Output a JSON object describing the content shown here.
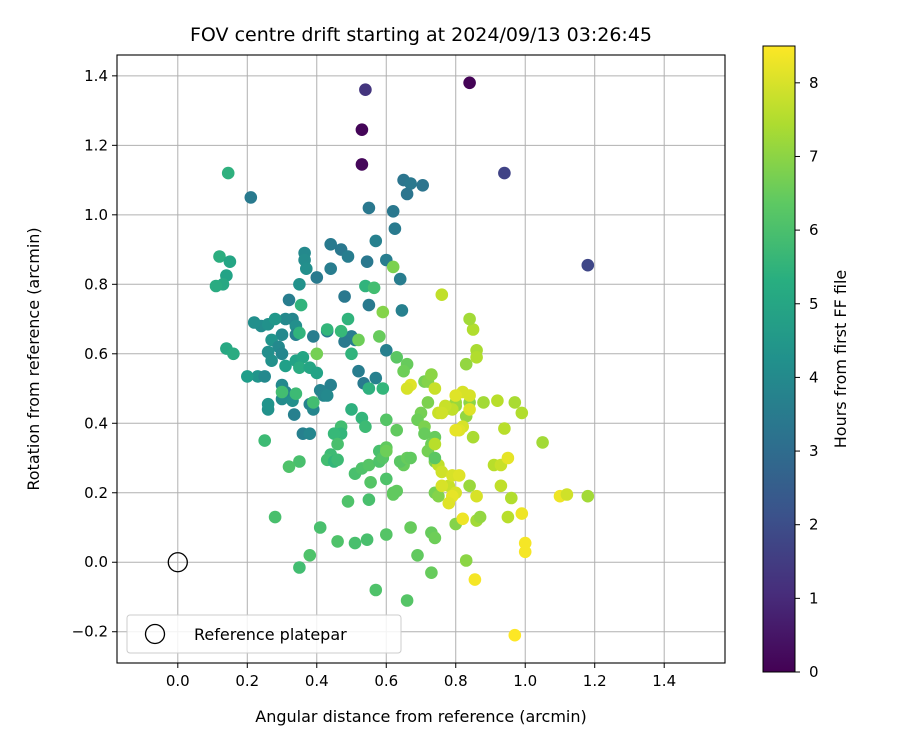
{
  "chart_data": {
    "type": "scatter",
    "title": "FOV centre drift starting at 2024/09/13 03:26:45",
    "xlabel": "Angular distance from reference (arcmin)",
    "ylabel": "Rotation from reference (arcmin)",
    "xlim": [
      -0.175,
      1.575
    ],
    "ylim": [
      -0.29,
      1.46
    ],
    "xticks": [
      "0.0",
      "0.2",
      "0.4",
      "0.6",
      "0.8",
      "1.0",
      "1.2",
      "1.4"
    ],
    "yticks": [
      "−0.2",
      "0.0",
      "0.2",
      "0.4",
      "0.6",
      "0.8",
      "1.0",
      "1.2",
      "1.4"
    ],
    "grid": true,
    "legend": {
      "placement": "lower-left",
      "entries": [
        "Reference platepar"
      ]
    },
    "reference_point": {
      "x": 0.0,
      "y": 0.0,
      "label": "Reference platepar"
    },
    "colorbar": {
      "label": "Hours from first FF file",
      "range": [
        0,
        8.5
      ],
      "ticks": [
        "0",
        "1",
        "2",
        "3",
        "4",
        "5",
        "6",
        "7",
        "8"
      ],
      "colormap": "viridis"
    },
    "points": [
      [
        0.84,
        1.38,
        0.05
      ],
      [
        0.53,
        1.245,
        0.1
      ],
      [
        0.53,
        1.145,
        0.15
      ],
      [
        0.54,
        1.36,
        1.3
      ],
      [
        0.94,
        1.12,
        1.7
      ],
      [
        1.18,
        0.855,
        1.8
      ],
      [
        0.21,
        1.05,
        3.5
      ],
      [
        0.55,
        1.02,
        3.4
      ],
      [
        0.65,
        1.1,
        3.3
      ],
      [
        0.67,
        1.09,
        3.4
      ],
      [
        0.66,
        1.06,
        3.3
      ],
      [
        0.705,
        1.085,
        3.3
      ],
      [
        0.62,
        1.01,
        3.4
      ],
      [
        0.625,
        0.96,
        3.5
      ],
      [
        0.44,
        0.915,
        3.5
      ],
      [
        0.47,
        0.9,
        3.4
      ],
      [
        0.49,
        0.88,
        3.6
      ],
      [
        0.57,
        0.925,
        3.7
      ],
      [
        0.6,
        0.87,
        3.6
      ],
      [
        0.545,
        0.865,
        3.4
      ],
      [
        0.44,
        0.845,
        3.6
      ],
      [
        0.4,
        0.82,
        3.5
      ],
      [
        0.64,
        0.815,
        3.6
      ],
      [
        0.645,
        0.725,
        3.7
      ],
      [
        0.55,
        0.74,
        3.5
      ],
      [
        0.48,
        0.765,
        3.4
      ],
      [
        0.32,
        0.755,
        3.6
      ],
      [
        0.365,
        0.89,
        4.0
      ],
      [
        0.365,
        0.87,
        4.1
      ],
      [
        0.37,
        0.845,
        4.2
      ],
      [
        0.35,
        0.8,
        4.3
      ],
      [
        0.33,
        0.7,
        3.9
      ],
      [
        0.31,
        0.7,
        4.0
      ],
      [
        0.34,
        0.68,
        4.2
      ],
      [
        0.3,
        0.655,
        4.0
      ],
      [
        0.24,
        0.68,
        4.1
      ],
      [
        0.22,
        0.69,
        4.2
      ],
      [
        0.26,
        0.685,
        4.3
      ],
      [
        0.28,
        0.7,
        4.5
      ],
      [
        0.27,
        0.64,
        4.4
      ],
      [
        0.29,
        0.62,
        4.0
      ],
      [
        0.26,
        0.605,
        4.2
      ],
      [
        0.3,
        0.6,
        3.9
      ],
      [
        0.27,
        0.58,
        4.3
      ],
      [
        0.34,
        0.655,
        3.7
      ],
      [
        0.39,
        0.65,
        3.6
      ],
      [
        0.43,
        0.665,
        3.5
      ],
      [
        0.5,
        0.65,
        3.6
      ],
      [
        0.51,
        0.64,
        3.6
      ],
      [
        0.48,
        0.635,
        3.5
      ],
      [
        0.6,
        0.61,
        3.7
      ],
      [
        0.52,
        0.55,
        3.6
      ],
      [
        0.57,
        0.53,
        3.7
      ],
      [
        0.535,
        0.515,
        3.5
      ],
      [
        0.44,
        0.51,
        3.7
      ],
      [
        0.41,
        0.495,
        3.8
      ],
      [
        0.42,
        0.48,
        3.9
      ],
      [
        0.43,
        0.48,
        4.0
      ],
      [
        0.3,
        0.51,
        4.0
      ],
      [
        0.31,
        0.49,
        3.8
      ],
      [
        0.3,
        0.47,
        4.1
      ],
      [
        0.33,
        0.465,
        4.2
      ],
      [
        0.335,
        0.425,
        3.7
      ],
      [
        0.38,
        0.455,
        3.8
      ],
      [
        0.39,
        0.44,
        3.9
      ],
      [
        0.36,
        0.37,
        3.7
      ],
      [
        0.38,
        0.37,
        3.9
      ],
      [
        0.26,
        0.44,
        4.3
      ],
      [
        0.26,
        0.455,
        4.4
      ],
      [
        0.23,
        0.535,
        4.4
      ],
      [
        0.25,
        0.535,
        4.0
      ],
      [
        0.2,
        0.535,
        4.7
      ],
      [
        0.31,
        0.565,
        4.8
      ],
      [
        0.34,
        0.58,
        4.9
      ],
      [
        0.36,
        0.59,
        5.0
      ],
      [
        0.35,
        0.56,
        5.2
      ],
      [
        0.38,
        0.56,
        5.0
      ],
      [
        0.4,
        0.545,
        4.9
      ],
      [
        0.12,
        0.88,
        5.3
      ],
      [
        0.15,
        0.865,
        5.0
      ],
      [
        0.14,
        0.825,
        4.9
      ],
      [
        0.13,
        0.8,
        5.1
      ],
      [
        0.11,
        0.795,
        5.2
      ],
      [
        0.14,
        0.615,
        5.1
      ],
      [
        0.16,
        0.6,
        5.2
      ],
      [
        0.145,
        1.12,
        5.4
      ],
      [
        0.355,
        0.74,
        5.5
      ],
      [
        0.35,
        0.66,
        5.5
      ],
      [
        0.43,
        0.67,
        5.6
      ],
      [
        0.47,
        0.665,
        5.7
      ],
      [
        0.49,
        0.7,
        5.5
      ],
      [
        0.54,
        0.795,
        5.5
      ],
      [
        0.565,
        0.79,
        5.9
      ],
      [
        0.5,
        0.6,
        5.5
      ],
      [
        0.59,
        0.5,
        5.6
      ],
      [
        0.55,
        0.5,
        5.4
      ],
      [
        0.5,
        0.44,
        5.4
      ],
      [
        0.53,
        0.415,
        5.6
      ],
      [
        0.54,
        0.39,
        5.8
      ],
      [
        0.47,
        0.39,
        5.9
      ],
      [
        0.47,
        0.37,
        5.6
      ],
      [
        0.45,
        0.37,
        5.7
      ],
      [
        0.46,
        0.34,
        6.0
      ],
      [
        0.44,
        0.31,
        5.8
      ],
      [
        0.43,
        0.295,
        5.9
      ],
      [
        0.45,
        0.29,
        5.6
      ],
      [
        0.46,
        0.295,
        5.8
      ],
      [
        0.35,
        0.29,
        6.0
      ],
      [
        0.32,
        0.275,
        6.1
      ],
      [
        0.3,
        0.49,
        5.9
      ],
      [
        0.34,
        0.485,
        5.8
      ],
      [
        0.39,
        0.46,
        5.9
      ],
      [
        0.25,
        0.35,
        5.8
      ],
      [
        0.28,
        0.13,
        6.0
      ],
      [
        0.41,
        0.1,
        6.0
      ],
      [
        0.38,
        0.02,
        6.1
      ],
      [
        0.35,
        -0.015,
        5.9
      ],
      [
        0.46,
        0.06,
        6.1
      ],
      [
        0.51,
        0.055,
        6.0
      ],
      [
        0.545,
        0.065,
        6.0
      ],
      [
        0.57,
        -0.08,
        6.1
      ],
      [
        0.6,
        0.08,
        6.2
      ],
      [
        0.66,
        -0.11,
        6.2
      ],
      [
        0.49,
        0.175,
        6.1
      ],
      [
        0.55,
        0.18,
        6.0
      ],
      [
        0.51,
        0.255,
        6.0
      ],
      [
        0.53,
        0.27,
        6.1
      ],
      [
        0.55,
        0.28,
        6.2
      ],
      [
        0.555,
        0.23,
        6.2
      ],
      [
        0.58,
        0.29,
        6.1
      ],
      [
        0.58,
        0.32,
        6.0
      ],
      [
        0.59,
        0.3,
        6.2
      ],
      [
        0.6,
        0.24,
        6.1
      ],
      [
        0.62,
        0.2,
        6.3
      ],
      [
        0.63,
        0.205,
        6.4
      ],
      [
        0.62,
        0.195,
        6.4
      ],
      [
        0.65,
        0.28,
        6.5
      ],
      [
        0.64,
        0.29,
        6.3
      ],
      [
        0.6,
        0.33,
        6.4
      ],
      [
        0.6,
        0.41,
        6.2
      ],
      [
        0.63,
        0.38,
        6.4
      ],
      [
        0.66,
        0.3,
        6.5
      ],
      [
        0.67,
        0.3,
        6.4
      ],
      [
        0.69,
        0.02,
        6.4
      ],
      [
        0.67,
        0.1,
        6.5
      ],
      [
        0.73,
        0.085,
        6.5
      ],
      [
        0.74,
        0.07,
        6.6
      ],
      [
        0.73,
        -0.03,
        6.5
      ],
      [
        0.66,
        0.57,
        6.5
      ],
      [
        0.63,
        0.59,
        6.3
      ],
      [
        0.65,
        0.55,
        6.6
      ],
      [
        0.58,
        0.65,
        6.5
      ],
      [
        0.52,
        0.64,
        6.6
      ],
      [
        0.4,
        0.6,
        6.7
      ],
      [
        0.59,
        0.72,
        6.9
      ],
      [
        0.62,
        0.85,
        6.8
      ],
      [
        0.7,
        0.43,
        6.7
      ],
      [
        0.69,
        0.41,
        6.6
      ],
      [
        0.71,
        0.39,
        6.8
      ],
      [
        0.74,
        0.36,
        6.5
      ],
      [
        0.73,
        0.34,
        6.6
      ],
      [
        0.72,
        0.32,
        6.7
      ],
      [
        0.74,
        0.29,
        6.8
      ],
      [
        0.74,
        0.2,
        6.7
      ],
      [
        0.75,
        0.19,
        6.9
      ],
      [
        0.71,
        0.52,
        6.7
      ],
      [
        0.72,
        0.52,
        6.9
      ],
      [
        0.73,
        0.54,
        7.0
      ],
      [
        0.72,
        0.46,
        6.8
      ],
      [
        0.8,
        0.11,
        6.9
      ],
      [
        0.83,
        0.005,
        7.0
      ],
      [
        0.84,
        0.22,
        7.2
      ],
      [
        0.86,
        0.12,
        7.3
      ],
      [
        0.8,
        0.45,
        7.1
      ],
      [
        0.8,
        0.46,
        7.2
      ],
      [
        0.84,
        0.46,
        7.0
      ],
      [
        0.83,
        0.42,
        7.1
      ],
      [
        0.85,
        0.36,
        7.4
      ],
      [
        0.88,
        0.46,
        7.3
      ],
      [
        0.92,
        0.465,
        7.6
      ],
      [
        0.97,
        0.46,
        7.4
      ],
      [
        0.99,
        0.43,
        7.5
      ],
      [
        1.05,
        0.345,
        7.3
      ],
      [
        0.83,
        0.57,
        7.1
      ],
      [
        0.86,
        0.61,
        7.4
      ],
      [
        0.86,
        0.59,
        7.5
      ],
      [
        0.85,
        0.67,
        7.5
      ],
      [
        0.84,
        0.7,
        7.3
      ],
      [
        0.76,
        0.77,
        7.7
      ],
      [
        0.74,
        0.5,
        7.8
      ],
      [
        0.77,
        0.44,
        7.6
      ],
      [
        0.79,
        0.44,
        7.7
      ],
      [
        0.77,
        0.45,
        7.8
      ],
      [
        0.82,
        0.49,
        8.0
      ],
      [
        0.8,
        0.48,
        8.1
      ],
      [
        0.84,
        0.44,
        8.1
      ],
      [
        0.84,
        0.48,
        8.0
      ],
      [
        0.82,
        0.39,
        8.0
      ],
      [
        0.81,
        0.38,
        8.1
      ],
      [
        0.75,
        0.43,
        7.8
      ],
      [
        0.76,
        0.43,
        7.9
      ],
      [
        0.74,
        0.34,
        7.6
      ],
      [
        0.75,
        0.28,
        7.7
      ],
      [
        0.76,
        0.26,
        7.9
      ],
      [
        0.78,
        0.22,
        7.8
      ],
      [
        0.79,
        0.25,
        8.0
      ],
      [
        0.8,
        0.2,
        8.0
      ],
      [
        0.81,
        0.25,
        8.1
      ],
      [
        0.79,
        0.19,
        8.2
      ],
      [
        0.78,
        0.17,
        8.1
      ],
      [
        0.76,
        0.22,
        8.0
      ],
      [
        0.82,
        0.125,
        8.3
      ],
      [
        0.86,
        0.19,
        8.0
      ],
      [
        0.91,
        0.28,
        7.6
      ],
      [
        0.93,
        0.28,
        7.8
      ],
      [
        0.94,
        0.385,
        7.6
      ],
      [
        0.93,
        0.22,
        7.7
      ],
      [
        0.95,
        0.13,
        7.6
      ],
      [
        0.96,
        0.185,
        7.5
      ],
      [
        0.95,
        0.3,
        8.2
      ],
      [
        0.99,
        0.14,
        8.3
      ],
      [
        1.0,
        0.055,
        8.4
      ],
      [
        1.0,
        0.03,
        8.4
      ],
      [
        0.97,
        -0.21,
        8.5
      ],
      [
        0.855,
        -0.05,
        8.4
      ],
      [
        1.1,
        0.19,
        8.3
      ],
      [
        1.12,
        0.195,
        7.9
      ],
      [
        1.18,
        0.19,
        7.3
      ],
      [
        0.87,
        0.13,
        7.1
      ],
      [
        0.67,
        0.51,
        8.1
      ],
      [
        0.66,
        0.5,
        8.0
      ],
      [
        0.8,
        0.38,
        8.2
      ],
      [
        0.6,
        0.32,
        6.6
      ],
      [
        0.71,
        0.37,
        6.5
      ],
      [
        0.74,
        0.3,
        6.3
      ]
    ]
  }
}
